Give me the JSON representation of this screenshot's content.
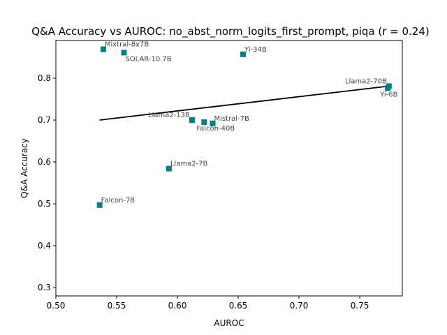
{
  "chart_data": {
    "type": "scatter",
    "title": "Q&A Accuracy vs AUROC: no_abst_norm_logits_first_prompt, piqa (r = 0.24)",
    "xlabel": "AUROC",
    "ylabel": "Q&A Accuracy",
    "xlim": [
      0.5,
      0.785
    ],
    "ylim": [
      0.28,
      0.89
    ],
    "xticks": [
      0.5,
      0.55,
      0.6,
      0.65,
      0.7,
      0.75
    ],
    "yticks": [
      0.3,
      0.4,
      0.5,
      0.6,
      0.7,
      0.8
    ],
    "grid": false,
    "marker": "square",
    "marker_color": "#008080",
    "fit_line_color": "#000000",
    "points": [
      {
        "name": "Mixtral-8x7B",
        "x": 0.539,
        "y": 0.869,
        "label_pos": "above-right"
      },
      {
        "name": "SOLAR-10.7B",
        "x": 0.556,
        "y": 0.861,
        "label_pos": "below-right"
      },
      {
        "name": "Yi-34B",
        "x": 0.654,
        "y": 0.857,
        "label_pos": "above-right"
      },
      {
        "name": "Llama2-70B",
        "x": 0.774,
        "y": 0.781,
        "label_pos": "above-left"
      },
      {
        "name": "Yi-6B",
        "x": 0.773,
        "y": 0.776,
        "label_pos": "below-left"
      },
      {
        "name": "Llama2-13B",
        "x": 0.612,
        "y": 0.7,
        "label_pos": "above-left"
      },
      {
        "name": "Falcon-40B",
        "x": 0.622,
        "y": 0.695,
        "label_pos": "below-left"
      },
      {
        "name": "Mistral-7B",
        "x": 0.629,
        "y": 0.692,
        "label_pos": "above-right"
      },
      {
        "name": "Llama2-7B",
        "x": 0.593,
        "y": 0.584,
        "label_pos": "above-right"
      },
      {
        "name": "Falcon-7B",
        "x": 0.536,
        "y": 0.497,
        "label_pos": "above-right"
      }
    ],
    "fit_line": {
      "x": [
        0.536,
        0.774
      ],
      "y": [
        0.7,
        0.781
      ]
    }
  }
}
